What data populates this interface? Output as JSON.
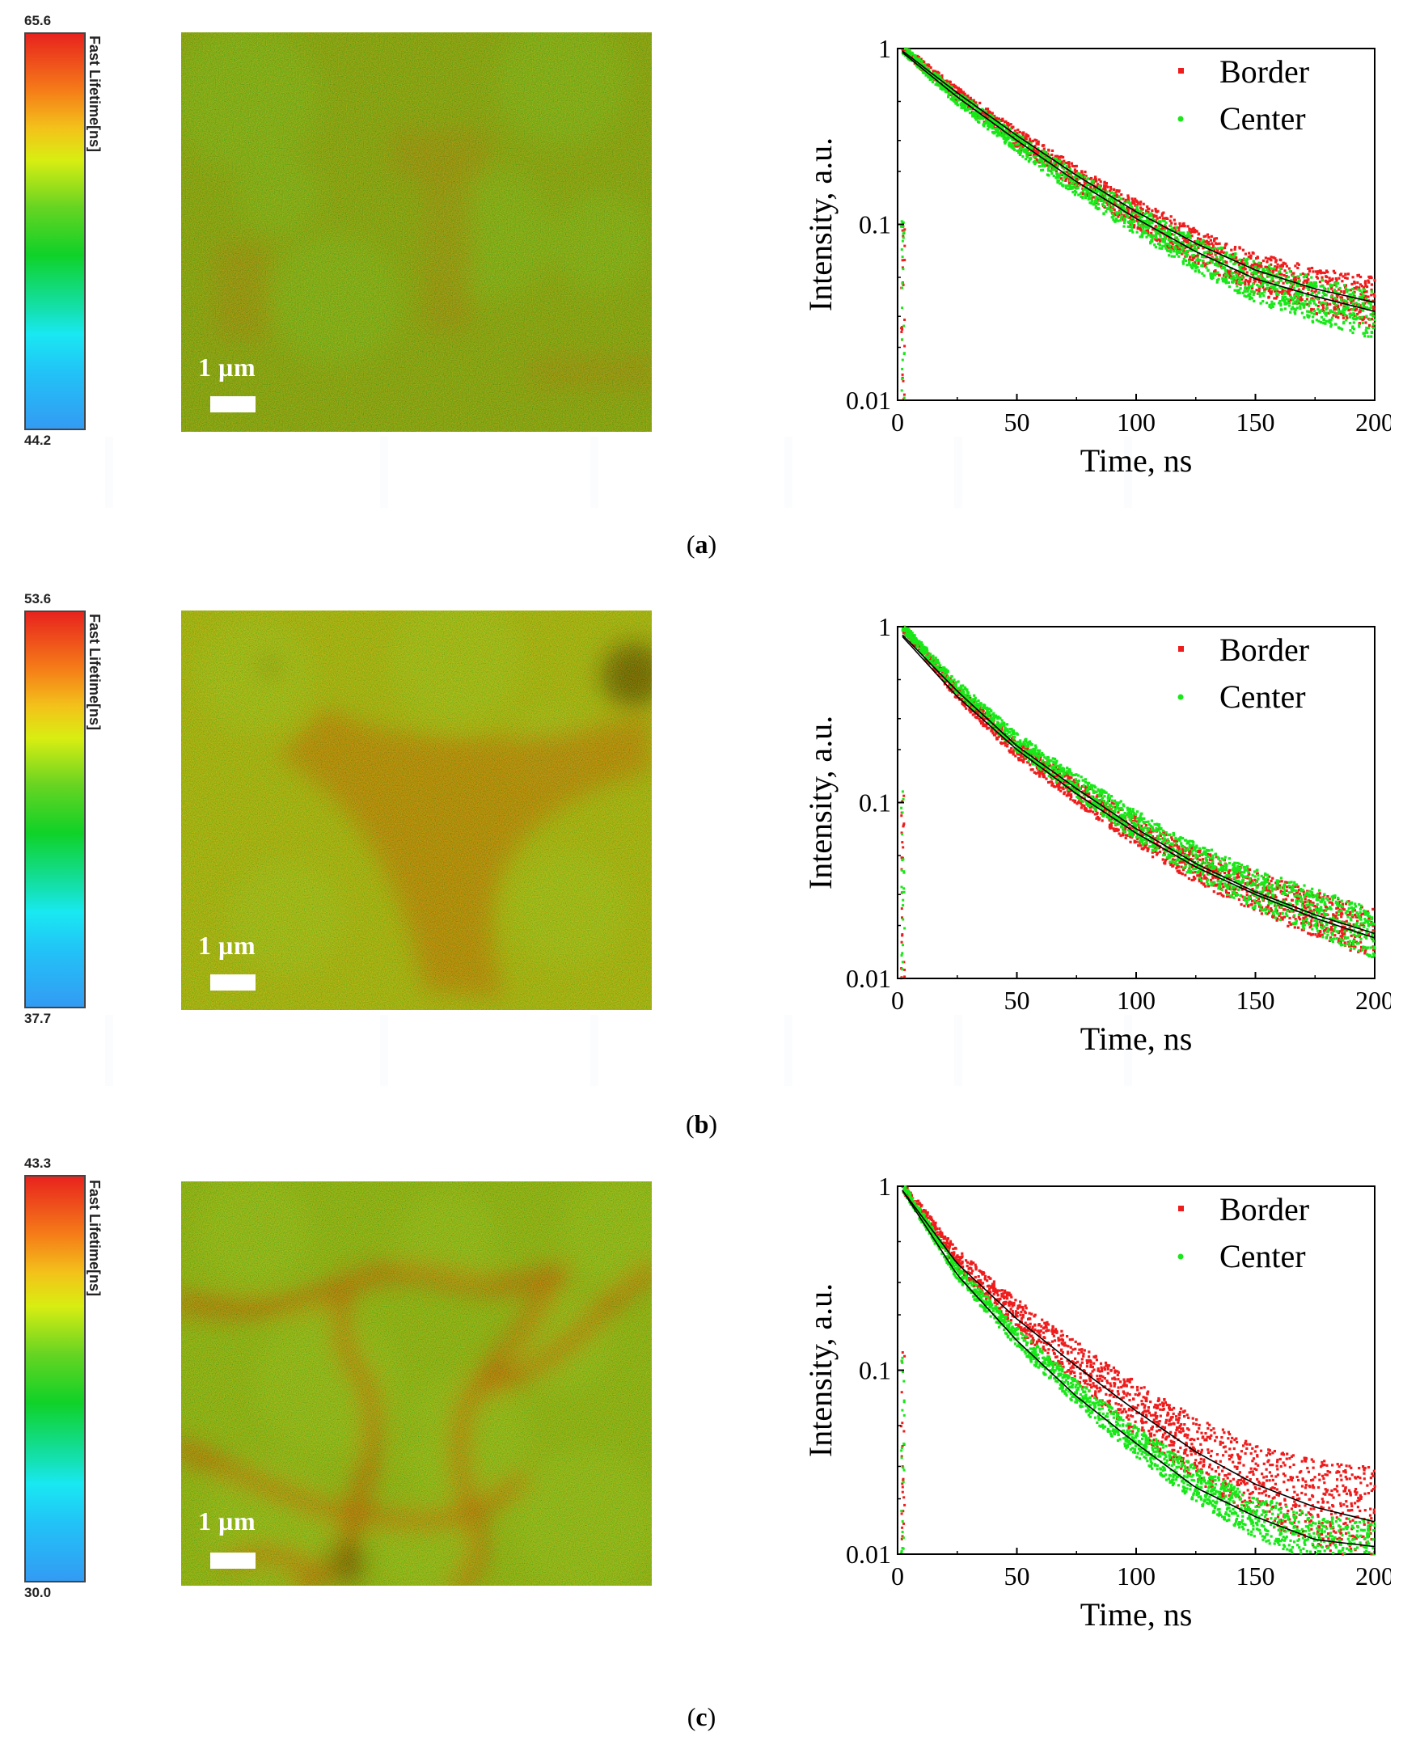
{
  "panels": [
    {
      "caption_letter": "a",
      "colorbar": {
        "max": "65.6",
        "min": "44.2",
        "label": "Fast Lifetime[ns]"
      },
      "scale_label": "1 µm",
      "map_pattern": "faint-domains",
      "chart_data": {
        "type": "scatter",
        "yscale": "log",
        "xlabel": "Time, ns",
        "ylabel": "Intensity, a.u.",
        "xlim": [
          0,
          200
        ],
        "ylim": [
          0.01,
          1
        ],
        "xticks": [
          "0",
          "50",
          "100",
          "150",
          "200"
        ],
        "yticks": [
          "0.01",
          "0.1",
          "1"
        ],
        "legend": [
          {
            "name": "Border",
            "color": "#ee1c1c"
          },
          {
            "name": "Center",
            "color": "#18e818"
          }
        ],
        "legend_position": "top-right",
        "series": [
          {
            "name": "Border",
            "color": "#ee1c1c",
            "x": [
              2,
              25,
              50,
              75,
              100,
              125,
              150,
              175,
              200
            ],
            "y": [
              1.0,
              0.55,
              0.31,
              0.185,
              0.115,
              0.075,
              0.053,
              0.042,
              0.036
            ]
          },
          {
            "name": "Center",
            "color": "#18e818",
            "x": [
              2,
              25,
              50,
              75,
              100,
              125,
              150,
              175,
              200
            ],
            "y": [
              1.0,
              0.52,
              0.29,
              0.17,
              0.105,
              0.068,
              0.047,
              0.037,
              0.031
            ]
          }
        ],
        "fits": [
          {
            "name": "Border fit",
            "x": [
              2,
              25,
              50,
              75,
              100,
              125,
              150,
              175,
              200
            ],
            "y": [
              0.97,
              0.56,
              0.32,
              0.19,
              0.118,
              0.078,
              0.055,
              0.043,
              0.036
            ]
          },
          {
            "name": "Center fit",
            "x": [
              2,
              25,
              50,
              75,
              100,
              125,
              150,
              175,
              200
            ],
            "y": [
              0.95,
              0.53,
              0.3,
              0.175,
              0.108,
              0.07,
              0.049,
              0.039,
              0.032
            ]
          }
        ]
      }
    },
    {
      "caption_letter": "b",
      "colorbar": {
        "max": "53.6",
        "min": "37.7",
        "label": "Fast Lifetime[ns]"
      },
      "scale_label": "1 µm",
      "map_pattern": "orange-boundaries",
      "chart_data": {
        "type": "scatter",
        "yscale": "log",
        "xlabel": "Time, ns",
        "ylabel": "Intensity, a.u.",
        "xlim": [
          0,
          200
        ],
        "ylim": [
          0.01,
          1
        ],
        "xticks": [
          "0",
          "50",
          "100",
          "150",
          "200"
        ],
        "yticks": [
          "0.01",
          "0.1",
          "1"
        ],
        "legend": [
          {
            "name": "Border",
            "color": "#ee1c1c"
          },
          {
            "name": "Center",
            "color": "#18e818"
          }
        ],
        "legend_position": "top-right",
        "series": [
          {
            "name": "Border",
            "color": "#ee1c1c",
            "x": [
              2,
              25,
              50,
              75,
              100,
              125,
              150,
              175,
              200
            ],
            "y": [
              1.0,
              0.42,
              0.2,
              0.115,
              0.068,
              0.044,
              0.031,
              0.023,
              0.018
            ]
          },
          {
            "name": "Center",
            "color": "#18e818",
            "x": [
              2,
              25,
              50,
              75,
              100,
              125,
              150,
              175,
              200
            ],
            "y": [
              1.0,
              0.45,
              0.22,
              0.125,
              0.074,
              0.047,
              0.032,
              0.024,
              0.018
            ]
          }
        ],
        "fits": [
          {
            "name": "Border fit",
            "x": [
              2,
              25,
              50,
              75,
              100,
              125,
              150,
              175,
              200
            ],
            "y": [
              0.88,
              0.4,
              0.2,
              0.112,
              0.067,
              0.043,
              0.03,
              0.022,
              0.017
            ]
          },
          {
            "name": "Center fit",
            "x": [
              2,
              25,
              50,
              75,
              100,
              125,
              150,
              175,
              200
            ],
            "y": [
              0.9,
              0.43,
              0.21,
              0.12,
              0.071,
              0.045,
              0.031,
              0.023,
              0.018
            ]
          }
        ]
      }
    },
    {
      "caption_letter": "c",
      "colorbar": {
        "max": "43.3",
        "min": "30.0",
        "label": "Fast Lifetime[ns]"
      },
      "scale_label": "1 µm",
      "map_pattern": "red-grain-network",
      "chart_data": {
        "type": "scatter",
        "yscale": "log",
        "xlabel": "Time, ns",
        "ylabel": "Intensity, a.u.",
        "xlim": [
          0,
          200
        ],
        "ylim": [
          0.01,
          1
        ],
        "xticks": [
          "0",
          "50",
          "100",
          "150",
          "200"
        ],
        "yticks": [
          "0.01",
          "0.1",
          "1"
        ],
        "legend": [
          {
            "name": "Border",
            "color": "#ee1c1c"
          },
          {
            "name": "Center",
            "color": "#18e818"
          }
        ],
        "legend_position": "top-right",
        "series": [
          {
            "name": "Border",
            "color": "#ee1c1c",
            "x": [
              2,
              25,
              50,
              75,
              100,
              125,
              150,
              175,
              200
            ],
            "y": [
              1.0,
              0.4,
              0.2,
              0.11,
              0.062,
              0.037,
              0.025,
              0.019,
              0.016
            ]
          },
          {
            "name": "Center",
            "color": "#18e818",
            "x": [
              2,
              25,
              50,
              75,
              100,
              125,
              150,
              175,
              200
            ],
            "y": [
              1.0,
              0.34,
              0.15,
              0.075,
              0.041,
              0.024,
              0.016,
              0.012,
              0.011
            ]
          }
        ],
        "fits": [
          {
            "name": "Border fit",
            "x": [
              2,
              25,
              50,
              75,
              100,
              125,
              150,
              175,
              200
            ],
            "y": [
              0.95,
              0.38,
              0.19,
              0.105,
              0.06,
              0.036,
              0.024,
              0.018,
              0.015
            ]
          },
          {
            "name": "Center fit",
            "x": [
              2,
              25,
              50,
              75,
              100,
              125,
              150,
              175,
              200
            ],
            "y": [
              0.95,
              0.33,
              0.145,
              0.072,
              0.04,
              0.023,
              0.016,
              0.012,
              0.011
            ]
          }
        ]
      }
    }
  ]
}
